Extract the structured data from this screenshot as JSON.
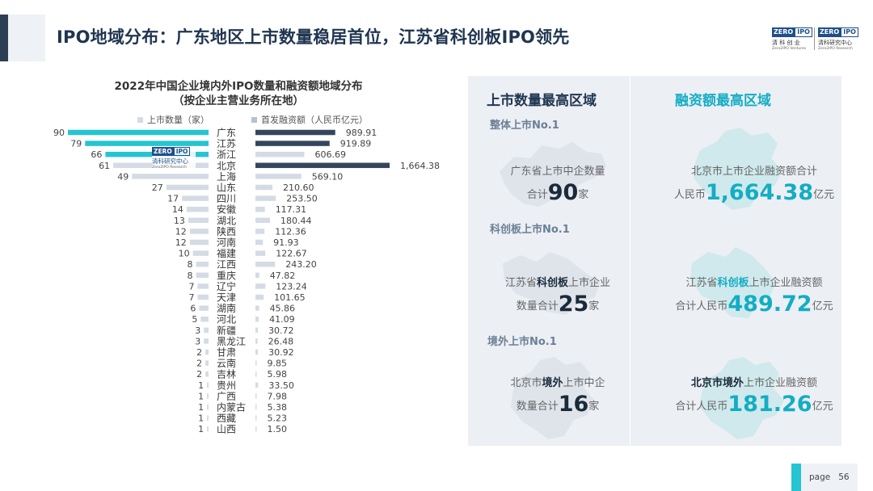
{
  "title": "IPO地域分布：广东地区上市数量稳居首位，江苏省科创板IPO领先",
  "logo": {
    "zero": "ZERO",
    "ipo": "IPO",
    "cn1": "清 科 创 业",
    "en1": "Zero2IPO Ventures",
    "cn2": "清科研究中心",
    "en2": "Zero2IPO Research"
  },
  "watermark": {
    "zero": "ZERO",
    "ipo": "IPO",
    "cn": "清科研究中心",
    "en": "Zero2IPO Research"
  },
  "colors": {
    "highlight": "#26c4d1",
    "dark_bar": "#35465c",
    "light_bar": "#d5dbe5",
    "accent_text": "#13adc4"
  },
  "chart_data": {
    "type": "bar",
    "title_line1": "2022年中国企业境内外IPO数量和融资额地域分布",
    "title_line2": "（按企业主营业务所在地）",
    "categories": [
      "广东",
      "江苏",
      "浙江",
      "北京",
      "上海",
      "山东",
      "四川",
      "安徽",
      "湖北",
      "陕西",
      "河南",
      "福建",
      "江西",
      "重庆",
      "辽宁",
      "天津",
      "湖南",
      "河北",
      "新疆",
      "黑龙江",
      "甘肃",
      "云南",
      "吉林",
      "贵州",
      "广西",
      "内蒙古",
      "西藏",
      "山西"
    ],
    "series": [
      {
        "name": "上市数量（家）",
        "values": [
          90,
          79,
          66,
          61,
          49,
          27,
          17,
          14,
          13,
          12,
          12,
          10,
          8,
          8,
          7,
          7,
          6,
          5,
          3,
          3,
          2,
          2,
          2,
          1,
          1,
          1,
          1,
          1
        ],
        "highlight_top": 3
      },
      {
        "name": "首发融资额（人民币亿元）",
        "values": [
          "989.91",
          "919.89",
          "606.69",
          "1,664.38",
          "569.10",
          "210.60",
          "253.50",
          "117.31",
          "180.44",
          "112.36",
          "91.93",
          "122.67",
          "243.20",
          "47.82",
          "123.24",
          "101.65",
          "45.86",
          "41.09",
          "30.72",
          "26.48",
          "30.92",
          "9.85",
          "5.98",
          "33.50",
          "7.98",
          "5.38",
          "5.23",
          "1.50"
        ],
        "highlight": [
          0,
          1,
          3
        ]
      }
    ]
  },
  "panel": {
    "left_head": "上市数量最高区域",
    "right_head": "融资额最高区域",
    "sections": [
      {
        "label": "整体上市No.1",
        "left": {
          "line1": "广东省上市中企数量",
          "pre": "合计",
          "num": "90",
          "unit": "家"
        },
        "right": {
          "line1": "北京市上市企业融资额合计",
          "pre": "人民币",
          "num": "1,664.38",
          "unit": "亿元"
        }
      },
      {
        "label": "科创板上市No.1",
        "left": {
          "line1a": "江苏省",
          "bold": "科创板",
          "line1b": "上市企业",
          "pre": "数量合计",
          "num": "25",
          "unit": "家"
        },
        "right": {
          "line1a": "江苏省",
          "bold": "科创板",
          "line1b": "上市企业融资额",
          "pre": "合计人民币",
          "num": "489.72",
          "unit": "亿元"
        }
      },
      {
        "label": "境外上市No.1",
        "left": {
          "line1a": "北京市",
          "bold": "境外",
          "line1b": "上市中企",
          "pre": "数量合计",
          "num": "16",
          "unit": "家"
        },
        "right": {
          "line1a": "北京市",
          "bold": "境外",
          "line1b": "上市企业融资额",
          "pre": "合计人民币",
          "num": "181.26",
          "unit": "亿元"
        }
      }
    ]
  },
  "page": {
    "label": "page",
    "number": "56"
  }
}
